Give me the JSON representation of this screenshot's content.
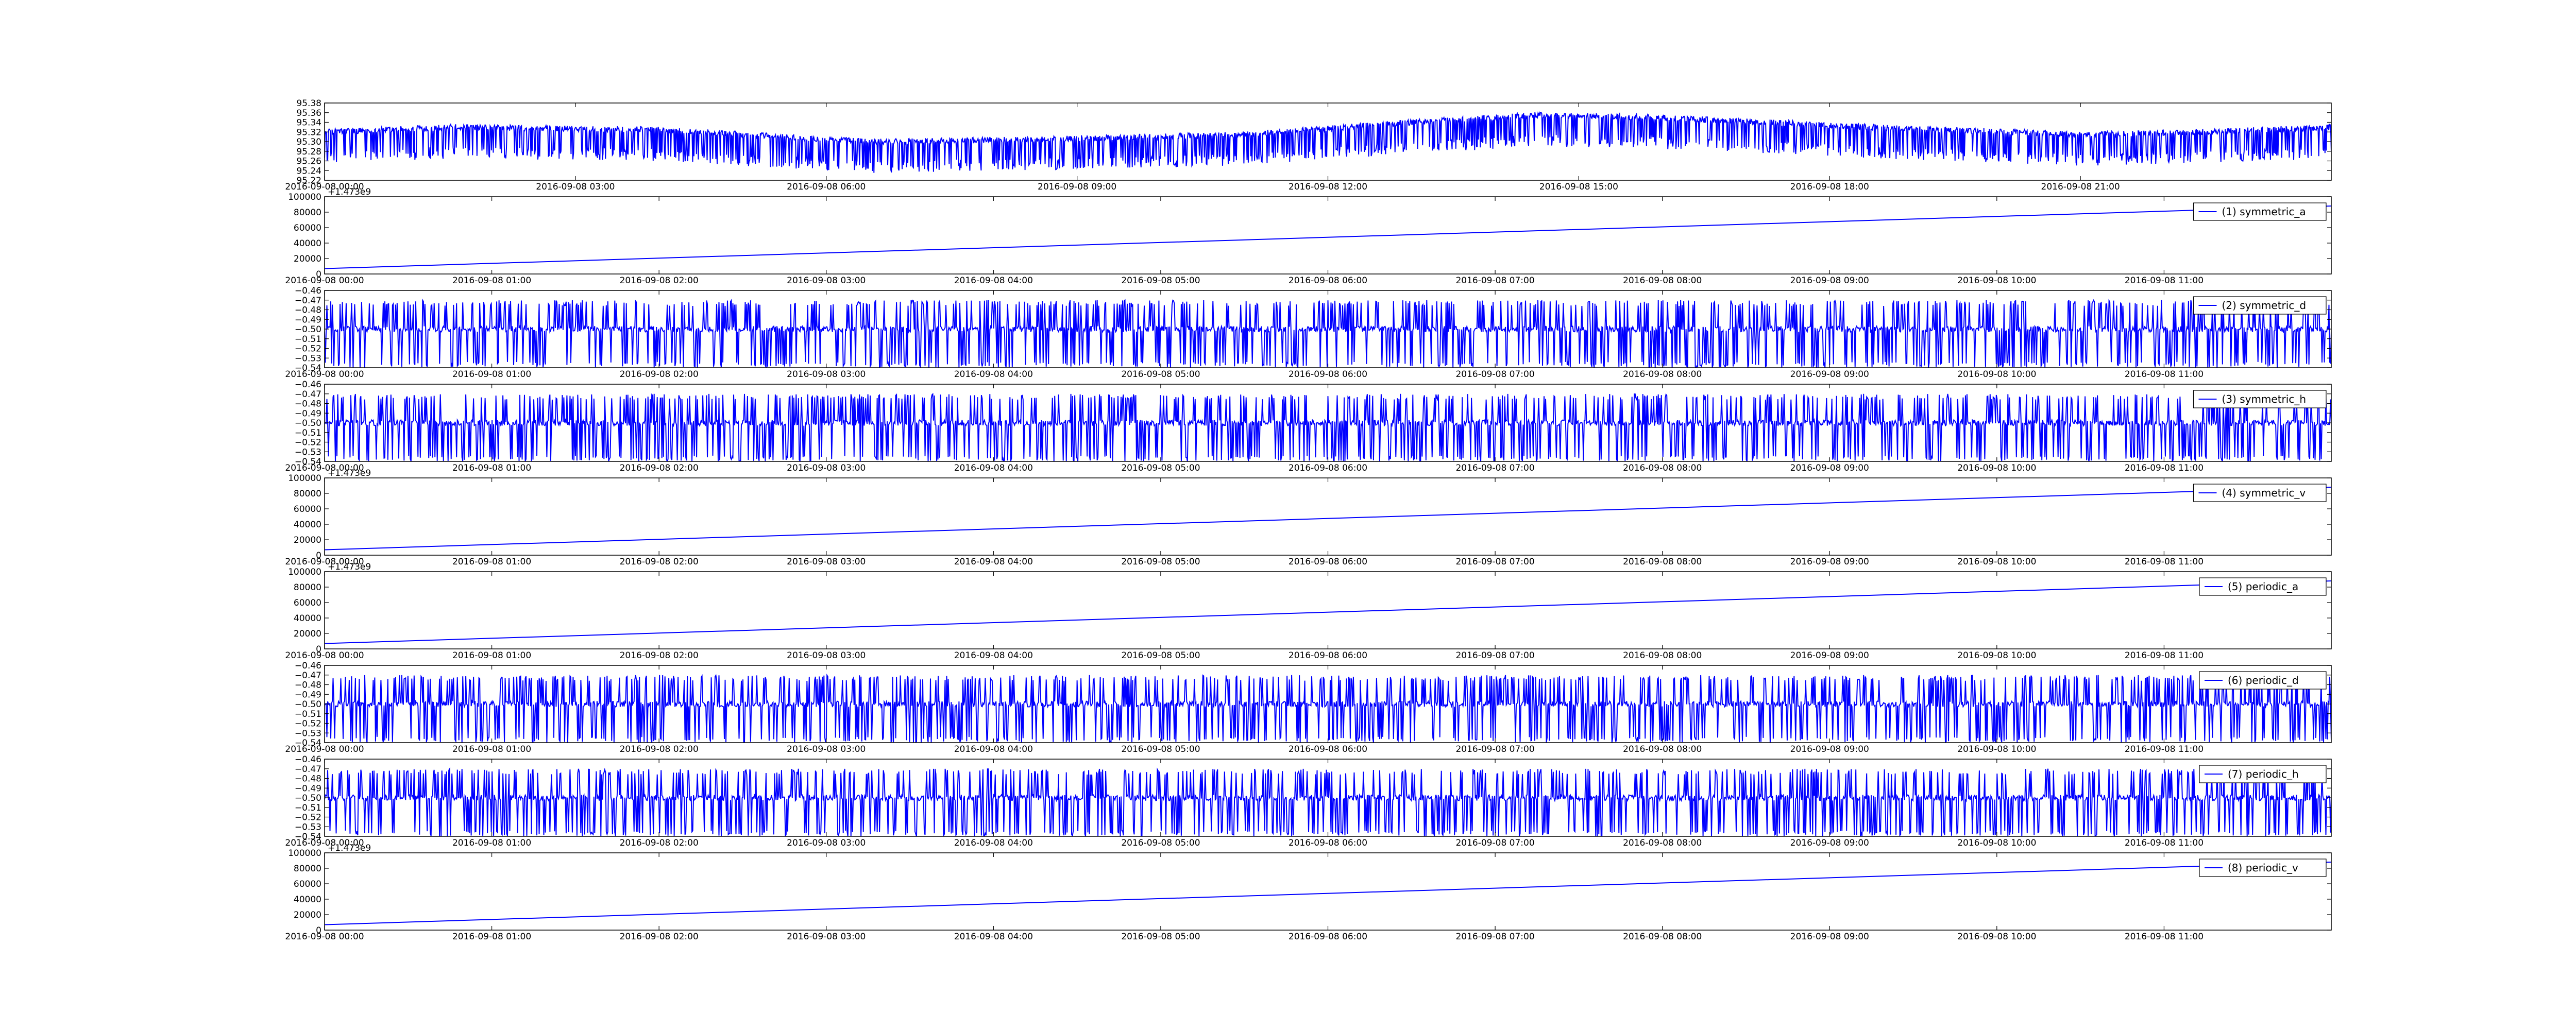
{
  "figure": {
    "colors": {
      "line": "#0000ff",
      "axes": "#000000",
      "background": "#ffffff"
    }
  },
  "chart_data": [
    {
      "type": "line",
      "xkind": "time",
      "xticks": [
        "2016-09-08 00:00",
        "2016-09-08 03:00",
        "2016-09-08 06:00",
        "2016-09-08 09:00",
        "2016-09-08 12:00",
        "2016-09-08 15:00",
        "2016-09-08 18:00",
        "2016-09-08 21:00"
      ],
      "xlim": [
        "2016-09-08 00:00",
        "2016-09-09 00:00"
      ],
      "ylim": [
        95.22,
        95.38
      ],
      "yticks": [
        "95.22",
        "95.24",
        "95.26",
        "95.28",
        "95.30",
        "95.32",
        "95.34",
        "95.36",
        "95.38"
      ],
      "offset_label": "",
      "legend": "",
      "pattern": "slow_noisy",
      "trend": [
        [
          "2016-09-08 00:00",
          95.32
        ],
        [
          "2016-09-08 01:30",
          95.33
        ],
        [
          "2016-09-08 04:00",
          95.325
        ],
        [
          "2016-09-08 06:30",
          95.3
        ],
        [
          "2016-09-08 08:30",
          95.305
        ],
        [
          "2016-09-08 11:00",
          95.315
        ],
        [
          "2016-09-08 13:00",
          95.34
        ],
        [
          "2016-09-08 14:30",
          95.355
        ],
        [
          "2016-09-08 16:00",
          95.35
        ],
        [
          "2016-09-08 18:30",
          95.33
        ],
        [
          "2016-09-08 21:00",
          95.315
        ],
        [
          "2016-09-08 22:30",
          95.32
        ],
        [
          "2016-09-09 00:00",
          95.33
        ]
      ],
      "baseline": 95.22
    },
    {
      "type": "line",
      "xkind": "time",
      "xticks": [
        "2016-09-08 00:00",
        "2016-09-08 01:00",
        "2016-09-08 02:00",
        "2016-09-08 03:00",
        "2016-09-08 04:00",
        "2016-09-08 05:00",
        "2016-09-08 06:00",
        "2016-09-08 07:00",
        "2016-09-08 08:00",
        "2016-09-08 09:00",
        "2016-09-08 10:00",
        "2016-09-08 11:00"
      ],
      "xlim": [
        "2016-09-08 00:00",
        "2016-09-08 12:00"
      ],
      "ylim": [
        0,
        100000
      ],
      "yticks": [
        "0",
        "20000",
        "40000",
        "60000",
        "80000",
        "100000"
      ],
      "offset_label": "+1.473e9",
      "legend": "(1) symmetric_a",
      "pattern": "linear",
      "ramp": [
        [
          "2016-09-08 00:00",
          7000
        ],
        [
          "2016-09-08 12:00",
          88000
        ]
      ]
    },
    {
      "type": "line",
      "xkind": "time",
      "xticks": [
        "2016-09-08 00:00",
        "2016-09-08 01:00",
        "2016-09-08 02:00",
        "2016-09-08 03:00",
        "2016-09-08 04:00",
        "2016-09-08 05:00",
        "2016-09-08 06:00",
        "2016-09-08 07:00",
        "2016-09-08 08:00",
        "2016-09-08 09:00",
        "2016-09-08 10:00",
        "2016-09-08 11:00"
      ],
      "xlim": [
        "2016-09-08 00:00",
        "2016-09-08 12:00"
      ],
      "ylim": [
        -0.54,
        -0.46
      ],
      "yticks": [
        "−0.54",
        "−0.53",
        "−0.52",
        "−0.51",
        "−0.50",
        "−0.49",
        "−0.48",
        "−0.47",
        "−0.46"
      ],
      "offset_label": "",
      "legend": "(2) symmetric_d",
      "pattern": "noisy",
      "noise_range": [
        -0.54,
        -0.47
      ],
      "baseline": -0.5
    },
    {
      "type": "line",
      "xkind": "time",
      "xticks": [
        "2016-09-08 00:00",
        "2016-09-08 01:00",
        "2016-09-08 02:00",
        "2016-09-08 03:00",
        "2016-09-08 04:00",
        "2016-09-08 05:00",
        "2016-09-08 06:00",
        "2016-09-08 07:00",
        "2016-09-08 08:00",
        "2016-09-08 09:00",
        "2016-09-08 10:00",
        "2016-09-08 11:00"
      ],
      "xlim": [
        "2016-09-08 00:00",
        "2016-09-08 12:00"
      ],
      "ylim": [
        -0.54,
        -0.46
      ],
      "yticks": [
        "−0.54",
        "−0.53",
        "−0.52",
        "−0.51",
        "−0.50",
        "−0.49",
        "−0.48",
        "−0.47",
        "−0.46"
      ],
      "offset_label": "",
      "legend": "(3) symmetric_h",
      "pattern": "noisy",
      "noise_range": [
        -0.54,
        -0.47
      ],
      "baseline": -0.5
    },
    {
      "type": "line",
      "xkind": "time",
      "xticks": [
        "2016-09-08 00:00",
        "2016-09-08 01:00",
        "2016-09-08 02:00",
        "2016-09-08 03:00",
        "2016-09-08 04:00",
        "2016-09-08 05:00",
        "2016-09-08 06:00",
        "2016-09-08 07:00",
        "2016-09-08 08:00",
        "2016-09-08 09:00",
        "2016-09-08 10:00",
        "2016-09-08 11:00"
      ],
      "xlim": [
        "2016-09-08 00:00",
        "2016-09-08 12:00"
      ],
      "ylim": [
        0,
        100000
      ],
      "yticks": [
        "0",
        "20000",
        "40000",
        "60000",
        "80000",
        "100000"
      ],
      "offset_label": "+1.473e9",
      "legend": "(4) symmetric_v",
      "pattern": "linear",
      "ramp": [
        [
          "2016-09-08 00:00",
          7000
        ],
        [
          "2016-09-08 12:00",
          88000
        ]
      ]
    },
    {
      "type": "line",
      "xkind": "time",
      "xticks": [
        "2016-09-08 00:00",
        "2016-09-08 01:00",
        "2016-09-08 02:00",
        "2016-09-08 03:00",
        "2016-09-08 04:00",
        "2016-09-08 05:00",
        "2016-09-08 06:00",
        "2016-09-08 07:00",
        "2016-09-08 08:00",
        "2016-09-08 09:00",
        "2016-09-08 10:00",
        "2016-09-08 11:00"
      ],
      "xlim": [
        "2016-09-08 00:00",
        "2016-09-08 12:00"
      ],
      "ylim": [
        0,
        100000
      ],
      "yticks": [
        "0",
        "20000",
        "40000",
        "60000",
        "80000",
        "100000"
      ],
      "offset_label": "+1.473e9",
      "legend": "(5) periodic_a",
      "pattern": "linear",
      "ramp": [
        [
          "2016-09-08 00:00",
          7000
        ],
        [
          "2016-09-08 12:00",
          88000
        ]
      ]
    },
    {
      "type": "line",
      "xkind": "time",
      "xticks": [
        "2016-09-08 00:00",
        "2016-09-08 01:00",
        "2016-09-08 02:00",
        "2016-09-08 03:00",
        "2016-09-08 04:00",
        "2016-09-08 05:00",
        "2016-09-08 06:00",
        "2016-09-08 07:00",
        "2016-09-08 08:00",
        "2016-09-08 09:00",
        "2016-09-08 10:00",
        "2016-09-08 11:00"
      ],
      "xlim": [
        "2016-09-08 00:00",
        "2016-09-08 12:00"
      ],
      "ylim": [
        -0.54,
        -0.46
      ],
      "yticks": [
        "−0.54",
        "−0.53",
        "−0.52",
        "−0.51",
        "−0.50",
        "−0.49",
        "−0.48",
        "−0.47",
        "−0.46"
      ],
      "offset_label": "",
      "legend": "(6) periodic_d",
      "pattern": "noisy",
      "noise_range": [
        -0.54,
        -0.47
      ],
      "baseline": -0.5
    },
    {
      "type": "line",
      "xkind": "time",
      "xticks": [
        "2016-09-08 00:00",
        "2016-09-08 01:00",
        "2016-09-08 02:00",
        "2016-09-08 03:00",
        "2016-09-08 04:00",
        "2016-09-08 05:00",
        "2016-09-08 06:00",
        "2016-09-08 07:00",
        "2016-09-08 08:00",
        "2016-09-08 09:00",
        "2016-09-08 10:00",
        "2016-09-08 11:00"
      ],
      "xlim": [
        "2016-09-08 00:00",
        "2016-09-08 12:00"
      ],
      "ylim": [
        -0.54,
        -0.46
      ],
      "yticks": [
        "−0.54",
        "−0.53",
        "−0.52",
        "−0.51",
        "−0.50",
        "−0.49",
        "−0.48",
        "−0.47",
        "−0.46"
      ],
      "offset_label": "",
      "legend": "(7) periodic_h",
      "pattern": "noisy",
      "noise_range": [
        -0.54,
        -0.47
      ],
      "baseline": -0.5
    },
    {
      "type": "line",
      "xkind": "time",
      "xticks": [
        "2016-09-08 00:00",
        "2016-09-08 01:00",
        "2016-09-08 02:00",
        "2016-09-08 03:00",
        "2016-09-08 04:00",
        "2016-09-08 05:00",
        "2016-09-08 06:00",
        "2016-09-08 07:00",
        "2016-09-08 08:00",
        "2016-09-08 09:00",
        "2016-09-08 10:00",
        "2016-09-08 11:00"
      ],
      "xlim": [
        "2016-09-08 00:00",
        "2016-09-08 12:00"
      ],
      "ylim": [
        0,
        100000
      ],
      "yticks": [
        "0",
        "20000",
        "40000",
        "60000",
        "80000",
        "100000"
      ],
      "offset_label": "+1.473e9",
      "legend": "(8) periodic_v",
      "pattern": "linear",
      "ramp": [
        [
          "2016-09-08 00:00",
          7000
        ],
        [
          "2016-09-08 12:00",
          88000
        ]
      ]
    }
  ]
}
